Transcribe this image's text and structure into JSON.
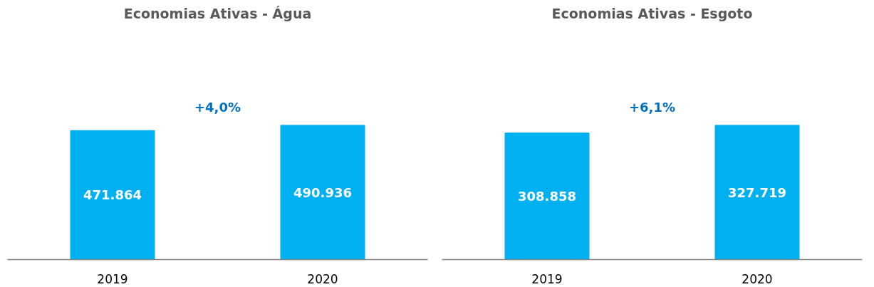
{
  "chart_data": [
    {
      "type": "bar",
      "title": "Economias Ativas - Água",
      "categories": [
        "2019",
        "2020"
      ],
      "values": [
        471864,
        490936
      ],
      "value_labels": [
        "471.864",
        "490.936"
      ],
      "color": "#00b0f0",
      "annotations": [
        "+4,0%"
      ]
    },
    {
      "type": "bar",
      "title": "Economias Ativas - Esgoto",
      "categories": [
        "2019",
        "2020"
      ],
      "values": [
        308858,
        327719
      ],
      "value_labels": [
        "308.858",
        "327.719"
      ],
      "color": "#00b0f0",
      "annotations": [
        "+6,1%"
      ]
    }
  ]
}
